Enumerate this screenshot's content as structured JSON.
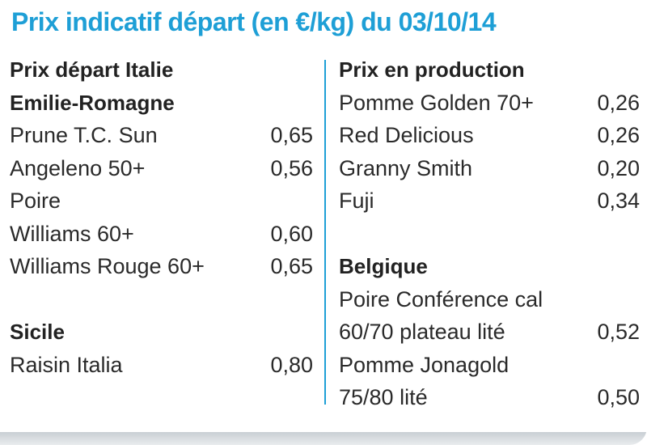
{
  "title": "Prix indicatif départ (en €/kg) du 03/10/14",
  "colors": {
    "accent": "#1e9fd6",
    "text": "#2a2a2a"
  },
  "left": {
    "heading1": "Prix départ Italie",
    "heading2": "Emilie-Romagne",
    "rows": [
      {
        "label": "Prune T.C. Sun",
        "value": "0,65"
      },
      {
        "label": "Angeleno 50+",
        "value": "0,56"
      },
      {
        "label": "Poire",
        "value": ""
      },
      {
        "label": "Williams 60+",
        "value": "0,60"
      },
      {
        "label": "Williams Rouge 60+",
        "value": "0,65"
      }
    ],
    "heading3": "Sicile",
    "rows2": [
      {
        "label": "Raisin Italia",
        "value": "0,80"
      }
    ]
  },
  "right": {
    "heading1": "Prix en production",
    "rows": [
      {
        "label": "Pomme Golden 70+",
        "value": "0,26"
      },
      {
        "label": "Red Delicious",
        "value": "0,26"
      },
      {
        "label": "Granny Smith",
        "value": "0,20"
      },
      {
        "label": "Fuji",
        "value": "0,34"
      }
    ],
    "heading2": "Belgique",
    "rows2": [
      {
        "label": "Poire Conférence cal",
        "value": ""
      },
      {
        "label": "60/70 plateau lité",
        "value": "0,52"
      },
      {
        "label": "Pomme Jonagold",
        "value": ""
      },
      {
        "label": "75/80 lité",
        "value": "0,50"
      }
    ]
  }
}
